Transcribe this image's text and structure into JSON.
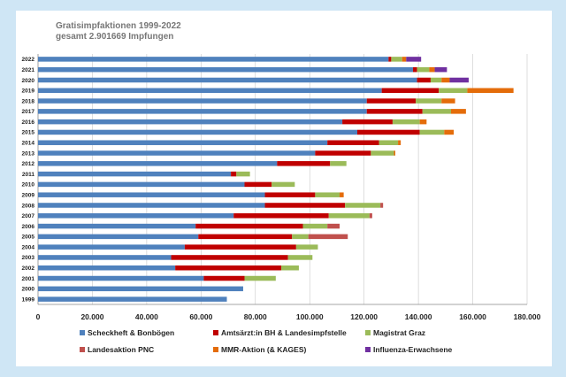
{
  "chart_data": {
    "type": "bar",
    "orientation": "horizontal",
    "stacked": true,
    "title_lines": [
      "Gratisimpfaktionen 1999-2022",
      "gesamt 2.901669 Impfungen"
    ],
    "categories": [
      "1999",
      "2000",
      "2001",
      "2002",
      "2003",
      "2004",
      "2005",
      "2006",
      "2007",
      "2008",
      "2009",
      "2010",
      "2011",
      "2012",
      "2013",
      "2014",
      "2015",
      "2016",
      "2017",
      "2018",
      "2019",
      "2020",
      "2021",
      "2022"
    ],
    "xlim": [
      0,
      180000
    ],
    "xticks": [
      0,
      20000,
      40000,
      60000,
      80000,
      100000,
      120000,
      140000,
      160000,
      180000
    ],
    "xtick_labels": [
      "0",
      "20.000",
      "40.000",
      "60.000",
      "80.000",
      "100.000",
      "120.000",
      "140.000",
      "160.000",
      "180.000"
    ],
    "grid": "vertical",
    "legend_position": "bottom",
    "series": [
      {
        "name": "Scheckheft & Bonbögen",
        "color": "#4f81bd",
        "values": [
          69500,
          75500,
          61000,
          50500,
          49000,
          54000,
          59000,
          58000,
          72000,
          83500,
          83500,
          76000,
          71000,
          88000,
          102000,
          106500,
          117500,
          112000,
          121000,
          121000,
          126500,
          139500,
          138000,
          129000
        ]
      },
      {
        "name": "Amtsärzt:in BH & Landesimpfstelle",
        "color": "#c00000",
        "values": [
          0,
          0,
          15000,
          39000,
          43000,
          41000,
          34500,
          39500,
          35000,
          29500,
          18500,
          10000,
          2000,
          19500,
          20500,
          19000,
          23000,
          18500,
          20500,
          18000,
          21000,
          5000,
          1500,
          1000
        ]
      },
      {
        "name": "Magistrat Graz",
        "color": "#9bbb59",
        "values": [
          0,
          0,
          11500,
          6500,
          9000,
          8000,
          6000,
          9000,
          15000,
          13000,
          9000,
          8500,
          5000,
          6000,
          8500,
          7000,
          9000,
          10000,
          10500,
          9500,
          10500,
          4000,
          4500,
          4000
        ]
      },
      {
        "name": "Landesaktion PNC",
        "color": "#c0504d",
        "values": [
          0,
          0,
          0,
          0,
          0,
          0,
          14500,
          4500,
          1000,
          1000,
          0,
          0,
          0,
          0,
          0,
          0,
          0,
          0,
          0,
          0,
          0,
          0,
          0,
          0
        ]
      },
      {
        "name": "MMR-Aktion (& KAGES)",
        "color": "#e46c0a",
        "values": [
          0,
          0,
          0,
          0,
          0,
          0,
          0,
          0,
          0,
          0,
          1500,
          0,
          0,
          0,
          500,
          1000,
          3500,
          2500,
          5500,
          5000,
          17000,
          3000,
          2000,
          1500
        ]
      },
      {
        "name": "Influenza-Erwachsene",
        "color": "#7030a0",
        "values": [
          0,
          0,
          0,
          0,
          0,
          0,
          0,
          0,
          0,
          0,
          0,
          0,
          0,
          0,
          0,
          0,
          0,
          0,
          0,
          0,
          0,
          7000,
          4500,
          5500
        ]
      }
    ]
  }
}
